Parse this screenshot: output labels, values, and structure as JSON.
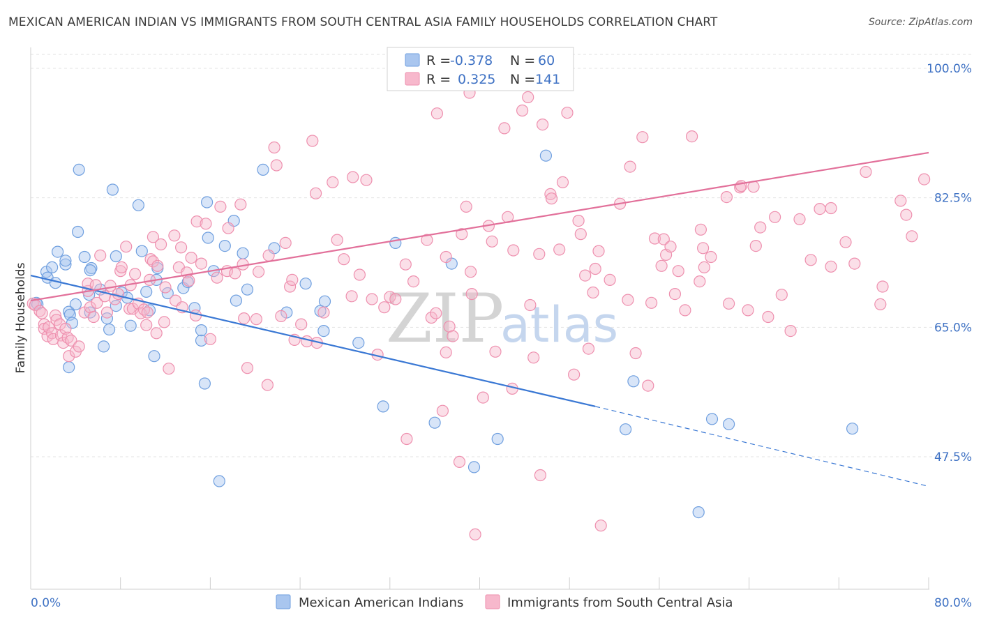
{
  "header": {
    "title": "MEXICAN AMERICAN INDIAN VS IMMIGRANTS FROM SOUTH CENTRAL ASIA FAMILY HOUSEHOLDS CORRELATION CHART",
    "source": "Source: ZipAtlas.com"
  },
  "watermark": {
    "zip": "ZIP",
    "atlas": "atlas"
  },
  "stats": {
    "r_label": "R =",
    "n_label": "N =",
    "rows": [
      {
        "r": "-0.378",
        "n": "60",
        "color": "#a9c6ef"
      },
      {
        "r": "0.325",
        "n": "141",
        "color": "#f7b8cc"
      }
    ]
  },
  "chart_data": {
    "type": "scatter",
    "title": "MEXICAN AMERICAN INDIAN VS IMMIGRANTS FROM SOUTH CENTRAL ASIA FAMILY HOUSEHOLDS CORRELATION CHART",
    "xlabel": "",
    "ylabel": "Family Households",
    "xlim": [
      0,
      80
    ],
    "ylim": [
      32.5,
      103.5
    ],
    "x_tick_labels": [
      {
        "value": 0,
        "label": "0.0%"
      },
      {
        "value": 80,
        "label": "80.0%"
      }
    ],
    "y_ticks": [
      {
        "value": 100,
        "label": "100.0%"
      },
      {
        "value": 82.5,
        "label": "82.5%"
      },
      {
        "value": 65,
        "label": "65.0%"
      },
      {
        "value": 47.5,
        "label": "47.5%"
      }
    ],
    "x_minor_ticks": [
      0,
      8,
      16,
      24,
      32,
      40,
      48,
      56,
      64,
      72,
      80
    ],
    "grid": true,
    "legend": "bottom-center",
    "series": [
      {
        "name": "Mexican American Indians",
        "color": "#6f9fdf",
        "fill": "#a9c6ef",
        "r": -0.378,
        "n": 60,
        "trend": {
          "x0": 0,
          "y0": 72.0,
          "x1": 50.3,
          "y1": 54.3,
          "dash_to_x": 80,
          "dash_to_y": 43.5
        },
        "points": [
          [
            0.5,
            68.3
          ],
          [
            0.6,
            68.1
          ],
          [
            1.4,
            72.5
          ],
          [
            1.5,
            71.7
          ],
          [
            1.9,
            73.1
          ],
          [
            2.4,
            75.2
          ],
          [
            2.2,
            71.0
          ],
          [
            3.1,
            73.5
          ],
          [
            3.1,
            74.0
          ],
          [
            3.4,
            67.1
          ],
          [
            3.5,
            66.7
          ],
          [
            3.7,
            65.6
          ],
          [
            3.4,
            59.6
          ],
          [
            4.3,
            86.3
          ],
          [
            4.2,
            77.9
          ],
          [
            4.0,
            68.1
          ],
          [
            4.8,
            74.5
          ],
          [
            5.3,
            67.0
          ],
          [
            5.4,
            73.0
          ],
          [
            5.2,
            69.4
          ],
          [
            5.3,
            72.7
          ],
          [
            6.2,
            70.1
          ],
          [
            6.5,
            62.4
          ],
          [
            6.8,
            66.2
          ],
          [
            7.0,
            64.7
          ],
          [
            7.3,
            83.6
          ],
          [
            7.6,
            74.6
          ],
          [
            7.6,
            67.9
          ],
          [
            8.1,
            69.7
          ],
          [
            8.6,
            69.0
          ],
          [
            8.9,
            65.2
          ],
          [
            9.6,
            81.5
          ],
          [
            9.9,
            75.3
          ],
          [
            10.3,
            69.8
          ],
          [
            10.6,
            67.3
          ],
          [
            11.0,
            61.1
          ],
          [
            11.3,
            73.0
          ],
          [
            11.2,
            71.4
          ],
          [
            12.2,
            69.6
          ],
          [
            13.6,
            70.3
          ],
          [
            14.0,
            71.1
          ],
          [
            14.6,
            67.6
          ],
          [
            15.2,
            63.2
          ],
          [
            15.2,
            64.6
          ],
          [
            15.5,
            57.4
          ],
          [
            15.7,
            81.9
          ],
          [
            15.8,
            77.1
          ],
          [
            16.8,
            44.2
          ],
          [
            16.3,
            72.6
          ],
          [
            17.3,
            76.0
          ],
          [
            18.1,
            79.4
          ],
          [
            18.9,
            75.0
          ],
          [
            19.3,
            70.1
          ],
          [
            18.3,
            68.6
          ],
          [
            20.7,
            86.3
          ],
          [
            21.7,
            75.7
          ],
          [
            24.5,
            70.9
          ],
          [
            22.8,
            67.0
          ],
          [
            25.8,
            67.2
          ],
          [
            26.1,
            64.5
          ],
          [
            26.2,
            68.5
          ],
          [
            29.2,
            62.9
          ],
          [
            32.5,
            76.4
          ],
          [
            31.4,
            54.3
          ],
          [
            36.0,
            52.1
          ],
          [
            37.5,
            73.6
          ],
          [
            39.5,
            46.1
          ],
          [
            41.6,
            49.9
          ],
          [
            45.9,
            88.2
          ],
          [
            53.0,
            51.2
          ],
          [
            53.7,
            57.7
          ],
          [
            59.5,
            40.0
          ],
          [
            60.7,
            52.6
          ],
          [
            62.2,
            51.9
          ],
          [
            73.2,
            51.3
          ]
        ]
      },
      {
        "name": "Immigrants from South Central Asia",
        "color": "#ee8fae",
        "fill": "#f7b8cc",
        "r": 0.325,
        "n": 141,
        "trend": {
          "x0": 0,
          "y0": 68.6,
          "x1": 80,
          "y1": 88.6
        },
        "points": [
          [
            0.2,
            68.2
          ],
          [
            0.4,
            68.0
          ],
          [
            0.8,
            67.2
          ],
          [
            1.0,
            66.9
          ],
          [
            1.2,
            65.4
          ],
          [
            1.2,
            64.8
          ],
          [
            1.5,
            63.8
          ],
          [
            1.6,
            65.0
          ],
          [
            1.9,
            64.2
          ],
          [
            2.0,
            63.4
          ],
          [
            2.2,
            66.6
          ],
          [
            2.3,
            66.0
          ],
          [
            2.6,
            65.4
          ],
          [
            2.7,
            63.9
          ],
          [
            2.9,
            62.9
          ],
          [
            3.1,
            64.8
          ],
          [
            3.3,
            63.6
          ],
          [
            3.4,
            61.1
          ],
          [
            3.6,
            63.2
          ],
          [
            4.0,
            61.7
          ],
          [
            4.3,
            62.4
          ],
          [
            4.8,
            67.0
          ],
          [
            5.1,
            69.9
          ],
          [
            5.1,
            70.9
          ],
          [
            5.3,
            67.7
          ],
          [
            5.6,
            66.4
          ],
          [
            5.8,
            70.7
          ],
          [
            5.9,
            68.3
          ],
          [
            6.2,
            74.7
          ],
          [
            6.6,
            69.2
          ],
          [
            6.8,
            67.0
          ],
          [
            7.1,
            70.6
          ],
          [
            7.5,
            68.8
          ],
          [
            7.8,
            69.5
          ],
          [
            8.0,
            72.6
          ],
          [
            8.1,
            73.1
          ],
          [
            8.5,
            75.9
          ],
          [
            8.9,
            70.7
          ],
          [
            8.8,
            67.5
          ],
          [
            9.1,
            67.5
          ],
          [
            9.3,
            72.2
          ],
          [
            9.6,
            68.2
          ],
          [
            9.8,
            66.9
          ],
          [
            10.1,
            67.4
          ],
          [
            10.3,
            65.3
          ],
          [
            10.4,
            67.0
          ],
          [
            10.6,
            71.4
          ],
          [
            10.7,
            74.2
          ],
          [
            10.9,
            77.2
          ],
          [
            10.9,
            73.9
          ],
          [
            11.2,
            64.2
          ],
          [
            11.3,
            73.3
          ],
          [
            11.6,
            76.2
          ],
          [
            11.9,
            65.7
          ],
          [
            12.0,
            70.4
          ],
          [
            12.3,
            59.4
          ],
          [
            12.8,
            77.4
          ],
          [
            12.9,
            68.6
          ],
          [
            13.2,
            73.1
          ],
          [
            13.4,
            75.8
          ],
          [
            13.5,
            67.7
          ],
          [
            13.9,
            72.4
          ],
          [
            14.1,
            71.3
          ],
          [
            14.3,
            74.4
          ],
          [
            14.7,
            66.6
          ],
          [
            14.8,
            79.3
          ],
          [
            15.2,
            73.6
          ],
          [
            15.6,
            79.0
          ],
          [
            16.0,
            63.4
          ],
          [
            16.6,
            71.7
          ],
          [
            16.9,
            81.3
          ],
          [
            17.5,
            72.6
          ],
          [
            17.6,
            78.4
          ],
          [
            18.2,
            72.3
          ],
          [
            18.7,
            81.6
          ],
          [
            18.9,
            73.5
          ],
          [
            19.0,
            66.2
          ],
          [
            19.3,
            59.5
          ],
          [
            20.1,
            66.1
          ],
          [
            20.3,
            72.5
          ],
          [
            21.1,
            57.2
          ],
          [
            21.2,
            74.7
          ],
          [
            21.7,
            89.3
          ],
          [
            21.9,
            86.9
          ],
          [
            22.3,
            66.5
          ],
          [
            22.7,
            76.4
          ],
          [
            23.1,
            70.5
          ],
          [
            23.3,
            71.4
          ],
          [
            23.5,
            63.3
          ],
          [
            24.1,
            65.4
          ],
          [
            24.6,
            63.1
          ],
          [
            25.1,
            90.2
          ],
          [
            25.4,
            83.1
          ],
          [
            25.5,
            62.9
          ],
          [
            26.1,
            67.0
          ],
          [
            26.9,
            84.6
          ],
          [
            27.3,
            76.8
          ],
          [
            27.9,
            74.2
          ],
          [
            28.6,
            69.2
          ],
          [
            28.7,
            85.3
          ],
          [
            29.3,
            72.1
          ],
          [
            29.9,
            84.9
          ],
          [
            30.4,
            68.8
          ],
          [
            30.9,
            61.3
          ],
          [
            31.5,
            67.7
          ],
          [
            32.0,
            69.1
          ],
          [
            32.5,
            68.8
          ],
          [
            33.4,
            73.5
          ],
          [
            34.1,
            71.2
          ],
          [
            35.3,
            76.8
          ],
          [
            35.7,
            66.3
          ],
          [
            36.2,
            93.9
          ],
          [
            36.1,
            66.9
          ],
          [
            37.0,
            74.5
          ],
          [
            37.3,
            65.1
          ],
          [
            38.4,
            77.6
          ],
          [
            38.8,
            81.3
          ],
          [
            39.2,
            72.5
          ],
          [
            39.3,
            69.5
          ],
          [
            39.8,
            98.7
          ],
          [
            40.3,
            55.5
          ],
          [
            40.8,
            78.7
          ],
          [
            41.1,
            76.6
          ],
          [
            41.4,
            61.7
          ],
          [
            42.2,
            91.9
          ],
          [
            42.5,
            79.9
          ],
          [
            43.0,
            75.4
          ],
          [
            43.8,
            94.3
          ],
          [
            44.3,
            96.1
          ],
          [
            44.5,
            68.0
          ],
          [
            44.8,
            60.9
          ],
          [
            45.3,
            74.9
          ],
          [
            45.6,
            92.4
          ],
          [
            46.3,
            83.0
          ],
          [
            46.4,
            82.4
          ],
          [
            47.1,
            75.5
          ],
          [
            47.4,
            84.6
          ],
          [
            47.8,
            94.0
          ],
          [
            48.4,
            58.6
          ],
          [
            48.8,
            79.4
          ],
          [
            49.0,
            77.6
          ],
          [
            49.4,
            72.0
          ],
          [
            49.7,
            62.1
          ],
          [
            50.1,
            69.7
          ],
          [
            50.3,
            72.9
          ],
          [
            50.6,
            75.3
          ],
          [
            51.6,
            71.4
          ],
          [
            52.5,
            81.7
          ],
          [
            53.2,
            68.7
          ],
          [
            53.4,
            86.7
          ],
          [
            54.5,
            90.7
          ],
          [
            55.3,
            68.3
          ],
          [
            55.6,
            77.0
          ],
          [
            56.2,
            73.3
          ],
          [
            56.4,
            76.9
          ],
          [
            56.6,
            74.8
          ],
          [
            57.0,
            75.9
          ],
          [
            57.4,
            69.5
          ],
          [
            57.7,
            72.6
          ],
          [
            58.9,
            90.8
          ],
          [
            59.6,
            71.2
          ],
          [
            59.9,
            75.7
          ],
          [
            60.6,
            74.5
          ],
          [
            62.2,
            68.2
          ],
          [
            63.2,
            83.9
          ],
          [
            63.9,
            67.3
          ],
          [
            64.4,
            84.0
          ],
          [
            64.6,
            76.0
          ],
          [
            65.0,
            78.5
          ],
          [
            66.3,
            79.9
          ],
          [
            66.9,
            69.4
          ],
          [
            68.5,
            79.6
          ],
          [
            69.5,
            74.1
          ],
          [
            70.3,
            81.0
          ],
          [
            71.3,
            73.2
          ],
          [
            71.3,
            81.1
          ],
          [
            72.6,
            76.5
          ],
          [
            73.4,
            73.6
          ],
          [
            74.4,
            86.0
          ],
          [
            75.7,
            68.1
          ],
          [
            75.9,
            70.5
          ],
          [
            77.5,
            82.1
          ],
          [
            78.0,
            80.2
          ],
          [
            78.5,
            77.3
          ],
          [
            79.6,
            85.0
          ],
          [
            65.7,
            66.4
          ],
          [
            67.7,
            64.5
          ],
          [
            63.3,
            84.1
          ],
          [
            60.0,
            73.1
          ],
          [
            37.0,
            61.6
          ],
          [
            39.1,
            96.7
          ],
          [
            62.0,
            82.6
          ],
          [
            59.7,
            78.2
          ],
          [
            58.3,
            67.3
          ],
          [
            53.9,
            61.5
          ],
          [
            55.0,
            57.1
          ],
          [
            42.9,
            56.7
          ],
          [
            33.5,
            49.9
          ],
          [
            36.7,
            53.7
          ],
          [
            37.6,
            63.8
          ],
          [
            38.2,
            46.8
          ],
          [
            39.6,
            37.0
          ],
          [
            45.4,
            45.0
          ],
          [
            50.8,
            38.2
          ]
        ]
      }
    ]
  }
}
